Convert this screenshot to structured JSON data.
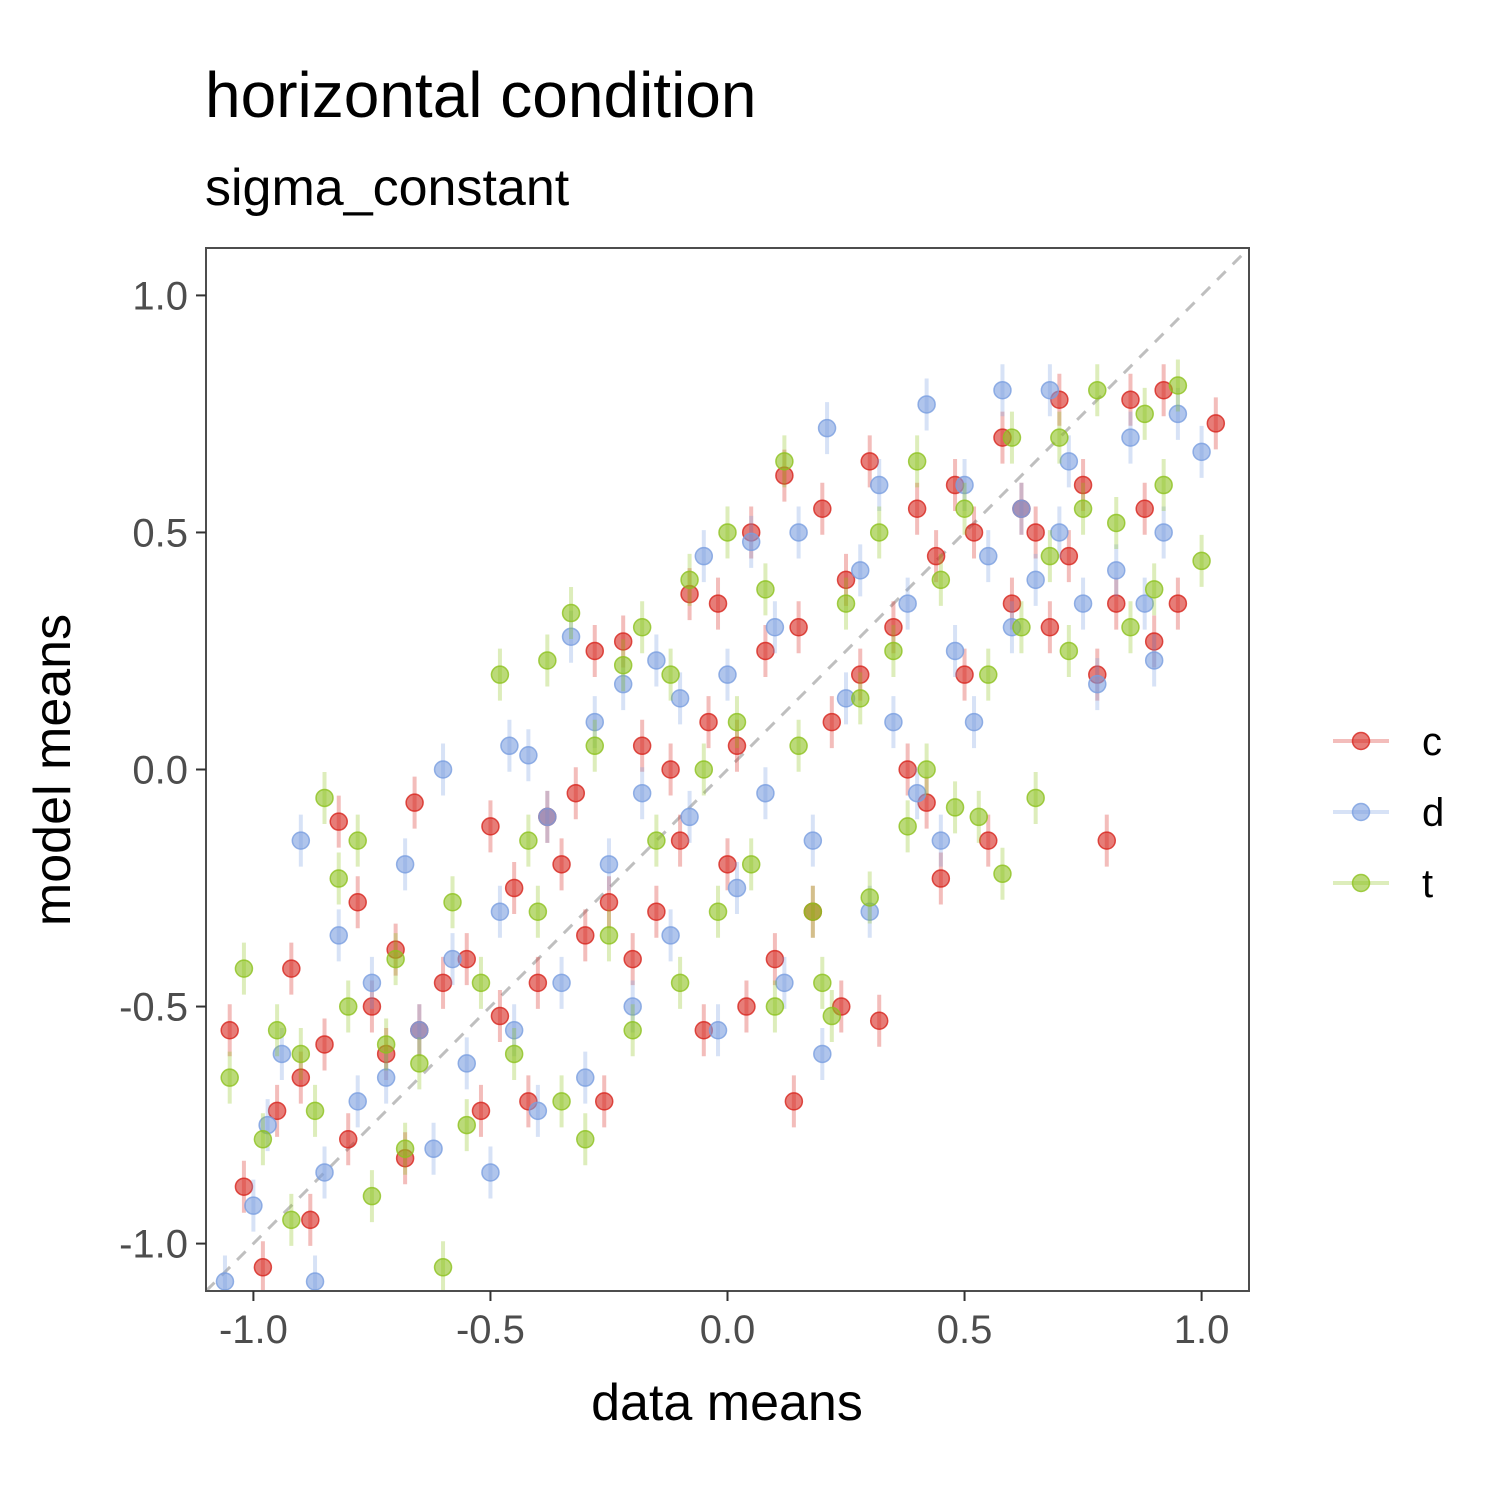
{
  "chart_data": {
    "type": "scatter",
    "title": "horizontal condition",
    "subtitle": "sigma_constant",
    "xlabel": "data means",
    "ylabel": "model means",
    "xlim": [
      -1.1,
      1.1
    ],
    "ylim": [
      -1.1,
      1.1
    ],
    "x_ticks": [
      "-1.0",
      "-0.5",
      "0.0",
      "0.5",
      "1.0"
    ],
    "y_ticks": [
      "-1.0",
      "-0.5",
      "0.0",
      "0.5",
      "1.0"
    ],
    "reference_line": {
      "style": "dashed",
      "slope": 1,
      "intercept": 0,
      "color": "#bfbfbf"
    },
    "grid": false,
    "error_bars": "vertical",
    "legend_position": "right",
    "series": [
      {
        "name": "c",
        "color": "#d7261e",
        "values": [
          [
            -1.05,
            -0.55
          ],
          [
            -1.02,
            -0.88
          ],
          [
            -0.98,
            -1.05
          ],
          [
            -0.95,
            -0.72
          ],
          [
            -0.92,
            -0.42
          ],
          [
            -0.9,
            -0.65
          ],
          [
            -0.88,
            -0.95
          ],
          [
            -0.85,
            -0.58
          ],
          [
            -0.82,
            -0.11
          ],
          [
            -0.8,
            -0.78
          ],
          [
            -0.78,
            -0.28
          ],
          [
            -0.75,
            -0.5
          ],
          [
            -0.72,
            -0.6
          ],
          [
            -0.7,
            -0.38
          ],
          [
            -0.68,
            -0.82
          ],
          [
            -0.66,
            -0.07
          ],
          [
            -0.65,
            -0.55
          ],
          [
            -0.6,
            -0.45
          ],
          [
            -0.55,
            -0.4
          ],
          [
            -0.52,
            -0.72
          ],
          [
            -0.5,
            -0.12
          ],
          [
            -0.48,
            -0.52
          ],
          [
            -0.45,
            -0.25
          ],
          [
            -0.42,
            -0.7
          ],
          [
            -0.4,
            -0.45
          ],
          [
            -0.38,
            -0.1
          ],
          [
            -0.35,
            -0.2
          ],
          [
            -0.32,
            -0.05
          ],
          [
            -0.3,
            -0.35
          ],
          [
            -0.28,
            0.25
          ],
          [
            -0.26,
            -0.7
          ],
          [
            -0.25,
            -0.28
          ],
          [
            -0.22,
            0.27
          ],
          [
            -0.2,
            -0.4
          ],
          [
            -0.18,
            0.05
          ],
          [
            -0.15,
            -0.3
          ],
          [
            -0.12,
            0.0
          ],
          [
            -0.1,
            -0.15
          ],
          [
            -0.08,
            0.37
          ],
          [
            -0.05,
            -0.55
          ],
          [
            -0.04,
            0.1
          ],
          [
            -0.02,
            0.35
          ],
          [
            0.0,
            -0.2
          ],
          [
            0.02,
            0.05
          ],
          [
            0.04,
            -0.5
          ],
          [
            0.05,
            0.5
          ],
          [
            0.08,
            0.25
          ],
          [
            0.1,
            -0.4
          ],
          [
            0.12,
            0.62
          ],
          [
            0.14,
            -0.7
          ],
          [
            0.15,
            0.3
          ],
          [
            0.18,
            -0.3
          ],
          [
            0.2,
            0.55
          ],
          [
            0.22,
            0.1
          ],
          [
            0.24,
            -0.5
          ],
          [
            0.25,
            0.4
          ],
          [
            0.28,
            0.2
          ],
          [
            0.3,
            0.65
          ],
          [
            0.32,
            -0.53
          ],
          [
            0.35,
            0.3
          ],
          [
            0.38,
            0.0
          ],
          [
            0.4,
            0.55
          ],
          [
            0.42,
            -0.07
          ],
          [
            0.44,
            0.45
          ],
          [
            0.45,
            -0.23
          ],
          [
            0.48,
            0.6
          ],
          [
            0.5,
            0.2
          ],
          [
            0.52,
            0.5
          ],
          [
            0.55,
            -0.15
          ],
          [
            0.58,
            0.7
          ],
          [
            0.6,
            0.35
          ],
          [
            0.62,
            0.55
          ],
          [
            0.65,
            0.5
          ],
          [
            0.68,
            0.3
          ],
          [
            0.7,
            0.78
          ],
          [
            0.72,
            0.45
          ],
          [
            0.75,
            0.6
          ],
          [
            0.78,
            0.2
          ],
          [
            0.8,
            -0.15
          ],
          [
            0.82,
            0.35
          ],
          [
            0.85,
            0.78
          ],
          [
            0.88,
            0.55
          ],
          [
            0.9,
            0.27
          ],
          [
            0.92,
            0.8
          ],
          [
            0.95,
            0.35
          ],
          [
            1.03,
            0.73
          ]
        ]
      },
      {
        "name": "d",
        "color": "#7b9fe0",
        "values": [
          [
            -1.06,
            -1.08
          ],
          [
            -1.0,
            -0.92
          ],
          [
            -0.97,
            -0.75
          ],
          [
            -0.94,
            -0.6
          ],
          [
            -0.9,
            -0.15
          ],
          [
            -0.87,
            -1.08
          ],
          [
            -0.85,
            -0.85
          ],
          [
            -0.82,
            -0.35
          ],
          [
            -0.78,
            -0.7
          ],
          [
            -0.75,
            -0.45
          ],
          [
            -0.72,
            -0.65
          ],
          [
            -0.68,
            -0.2
          ],
          [
            -0.65,
            -0.55
          ],
          [
            -0.62,
            -0.8
          ],
          [
            -0.6,
            0.0
          ],
          [
            -0.58,
            -0.4
          ],
          [
            -0.55,
            -0.62
          ],
          [
            -0.5,
            -0.85
          ],
          [
            -0.48,
            -0.3
          ],
          [
            -0.46,
            0.05
          ],
          [
            -0.45,
            -0.55
          ],
          [
            -0.42,
            0.03
          ],
          [
            -0.4,
            -0.72
          ],
          [
            -0.38,
            -0.1
          ],
          [
            -0.35,
            -0.45
          ],
          [
            -0.33,
            0.28
          ],
          [
            -0.3,
            -0.65
          ],
          [
            -0.28,
            0.1
          ],
          [
            -0.25,
            -0.2
          ],
          [
            -0.22,
            0.18
          ],
          [
            -0.2,
            -0.5
          ],
          [
            -0.18,
            -0.05
          ],
          [
            -0.15,
            0.23
          ],
          [
            -0.12,
            -0.35
          ],
          [
            -0.1,
            0.15
          ],
          [
            -0.08,
            -0.1
          ],
          [
            -0.05,
            0.45
          ],
          [
            -0.02,
            -0.55
          ],
          [
            0.0,
            0.2
          ],
          [
            0.02,
            -0.25
          ],
          [
            0.05,
            0.48
          ],
          [
            0.08,
            -0.05
          ],
          [
            0.1,
            0.3
          ],
          [
            0.12,
            -0.45
          ],
          [
            0.15,
            0.5
          ],
          [
            0.18,
            -0.15
          ],
          [
            0.2,
            -0.6
          ],
          [
            0.21,
            0.72
          ],
          [
            0.25,
            0.15
          ],
          [
            0.28,
            0.42
          ],
          [
            0.3,
            -0.3
          ],
          [
            0.32,
            0.6
          ],
          [
            0.35,
            0.1
          ],
          [
            0.38,
            0.35
          ],
          [
            0.4,
            -0.05
          ],
          [
            0.42,
            0.77
          ],
          [
            0.45,
            -0.15
          ],
          [
            0.48,
            0.25
          ],
          [
            0.5,
            0.6
          ],
          [
            0.52,
            0.1
          ],
          [
            0.55,
            0.45
          ],
          [
            0.58,
            0.8
          ],
          [
            0.6,
            0.3
          ],
          [
            0.62,
            0.55
          ],
          [
            0.65,
            0.4
          ],
          [
            0.68,
            0.8
          ],
          [
            0.7,
            0.5
          ],
          [
            0.72,
            0.65
          ],
          [
            0.75,
            0.35
          ],
          [
            0.78,
            0.18
          ],
          [
            0.82,
            0.42
          ],
          [
            0.85,
            0.7
          ],
          [
            0.88,
            0.35
          ],
          [
            0.9,
            0.23
          ],
          [
            0.92,
            0.5
          ],
          [
            0.95,
            0.75
          ],
          [
            1.0,
            0.67
          ]
        ]
      },
      {
        "name": "t",
        "color": "#8dc21f",
        "values": [
          [
            -1.05,
            -0.65
          ],
          [
            -1.02,
            -0.42
          ],
          [
            -0.98,
            -0.78
          ],
          [
            -0.95,
            -0.55
          ],
          [
            -0.92,
            -0.95
          ],
          [
            -0.9,
            -0.6
          ],
          [
            -0.87,
            -0.72
          ],
          [
            -0.85,
            -0.06
          ],
          [
            -0.82,
            -0.23
          ],
          [
            -0.8,
            -0.5
          ],
          [
            -0.78,
            -0.15
          ],
          [
            -0.75,
            -0.9
          ],
          [
            -0.72,
            -0.58
          ],
          [
            -0.7,
            -0.4
          ],
          [
            -0.68,
            -0.8
          ],
          [
            -0.65,
            -0.62
          ],
          [
            -0.6,
            -1.05
          ],
          [
            -0.58,
            -0.28
          ],
          [
            -0.55,
            -0.75
          ],
          [
            -0.52,
            -0.45
          ],
          [
            -0.48,
            0.2
          ],
          [
            -0.45,
            -0.6
          ],
          [
            -0.42,
            -0.15
          ],
          [
            -0.4,
            -0.3
          ],
          [
            -0.38,
            0.23
          ],
          [
            -0.35,
            -0.7
          ],
          [
            -0.33,
            0.33
          ],
          [
            -0.3,
            -0.78
          ],
          [
            -0.28,
            0.05
          ],
          [
            -0.25,
            -0.35
          ],
          [
            -0.22,
            0.22
          ],
          [
            -0.2,
            -0.55
          ],
          [
            -0.18,
            0.3
          ],
          [
            -0.15,
            -0.15
          ],
          [
            -0.12,
            0.2
          ],
          [
            -0.1,
            -0.45
          ],
          [
            -0.08,
            0.4
          ],
          [
            -0.05,
            0.0
          ],
          [
            -0.02,
            -0.3
          ],
          [
            0.0,
            0.5
          ],
          [
            0.02,
            0.1
          ],
          [
            0.05,
            -0.2
          ],
          [
            0.08,
            0.38
          ],
          [
            0.1,
            -0.5
          ],
          [
            0.12,
            0.65
          ],
          [
            0.15,
            0.05
          ],
          [
            0.18,
            -0.3
          ],
          [
            0.2,
            -0.45
          ],
          [
            0.22,
            -0.52
          ],
          [
            0.25,
            0.35
          ],
          [
            0.28,
            0.15
          ],
          [
            0.3,
            -0.27
          ],
          [
            0.32,
            0.5
          ],
          [
            0.35,
            0.25
          ],
          [
            0.38,
            -0.12
          ],
          [
            0.4,
            0.65
          ],
          [
            0.42,
            0.0
          ],
          [
            0.45,
            0.4
          ],
          [
            0.48,
            -0.08
          ],
          [
            0.5,
            0.55
          ],
          [
            0.53,
            -0.1
          ],
          [
            0.55,
            0.2
          ],
          [
            0.58,
            -0.22
          ],
          [
            0.6,
            0.7
          ],
          [
            0.62,
            0.3
          ],
          [
            0.65,
            -0.06
          ],
          [
            0.68,
            0.45
          ],
          [
            0.7,
            0.7
          ],
          [
            0.72,
            0.25
          ],
          [
            0.75,
            0.55
          ],
          [
            0.78,
            0.8
          ],
          [
            0.82,
            0.52
          ],
          [
            0.85,
            0.3
          ],
          [
            0.88,
            0.75
          ],
          [
            0.9,
            0.38
          ],
          [
            0.92,
            0.6
          ],
          [
            0.95,
            0.81
          ],
          [
            1.0,
            0.44
          ]
        ]
      }
    ]
  }
}
